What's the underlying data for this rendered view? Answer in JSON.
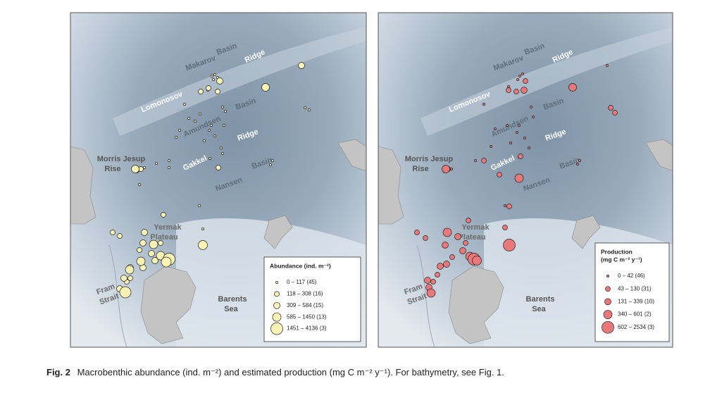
{
  "panels": [
    {
      "place_labels": [
        "Makarov",
        "Basin",
        "Ridge",
        "Lomonosov",
        "Basin",
        "Amundsen",
        "Ridge",
        "Morris Jesup",
        "Rise",
        "Gakkel",
        "Basin",
        "Nansen",
        "Yermak",
        "Plateau",
        "Fram",
        "Strait",
        "Barents",
        "Sea"
      ],
      "legend": {
        "title_lines": [
          "Abundance (ind. m⁻²)"
        ],
        "entries": [
          "0 – 117 (45)",
          "118 – 308 (16)",
          "309 – 584 (15)",
          "585 – 1450 (13)",
          "1451 – 4136 (3)"
        ]
      }
    },
    {
      "place_labels": [
        "Makarov",
        "Basin",
        "Ridge",
        "Lomonosov",
        "Basin",
        "Amundsen",
        "Ridge",
        "Morris Jesup",
        "Rise",
        "Gakkel",
        "Basin",
        "Nansen",
        "Yermak",
        "Plateau",
        "Fram",
        "Strait",
        "Barents",
        "Sea"
      ],
      "legend": {
        "title_lines": [
          "Production",
          "(mg C m⁻² y⁻¹)"
        ],
        "entries": [
          "0 – 42 (46)",
          "43 – 130 (31)",
          "131 – 339 (10)",
          "340 – 601 (2)",
          "602 – 2534 (3)"
        ]
      }
    }
  ],
  "caption": {
    "label": "Fig. 2",
    "text": "Macrobenthic abundance (ind. m⁻²) and estimated production (mg C m⁻² y⁻¹). For bathymetry, see Fig. 1."
  }
}
